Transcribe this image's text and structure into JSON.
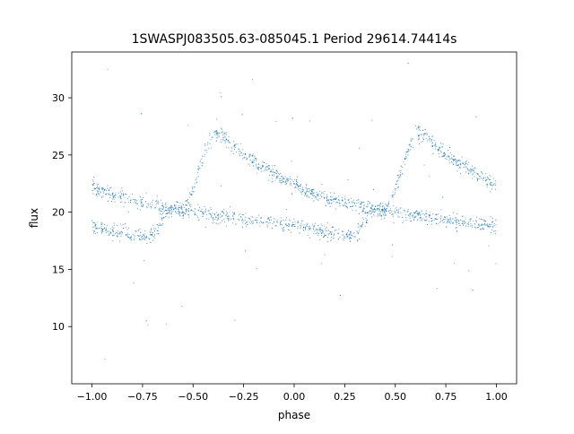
{
  "chart_data": {
    "type": "scatter",
    "title": "1SWASPJ083505.63-085045.1 Period 29614.74414s",
    "xlabel": "phase",
    "ylabel": "flux",
    "xlim": [
      -1.1,
      1.1
    ],
    "ylim": [
      5.0,
      34.0
    ],
    "xticks": [
      -1.0,
      -0.75,
      -0.5,
      -0.25,
      0.0,
      0.25,
      0.5,
      0.75,
      1.0
    ],
    "xtick_labels": [
      "−1.00",
      "−0.75",
      "−0.50",
      "−0.25",
      "0.00",
      "0.25",
      "0.50",
      "0.75",
      "1.00"
    ],
    "yticks": [
      10,
      15,
      20,
      25,
      30
    ],
    "ytick_labels": [
      "10",
      "15",
      "20",
      "25",
      "30"
    ],
    "grid": false,
    "legend": "none",
    "marker_color": "#1f77b4",
    "series": [
      {
        "description_points": "phase-folded light curve, shown twice (phase -1 to 1)",
        "upper_branch_x": [
          -1.0,
          -0.9,
          -0.8,
          -0.7,
          -0.6,
          -0.55,
          -0.5,
          -0.45,
          -0.4,
          -0.35,
          -0.3,
          -0.2,
          -0.1,
          0.0,
          0.1,
          0.2,
          0.3,
          0.4,
          0.45,
          0.5,
          0.55,
          0.6,
          0.65,
          0.7,
          0.8,
          0.9,
          1.0
        ],
        "upper_branch_y": [
          22.3,
          21.5,
          21.0,
          20.6,
          20.2,
          20.0,
          22.0,
          24.8,
          26.8,
          26.7,
          25.8,
          24.5,
          23.3,
          22.3,
          21.5,
          21.0,
          20.6,
          20.2,
          20.0,
          22.0,
          24.8,
          26.8,
          26.7,
          25.8,
          24.5,
          23.3,
          22.3
        ]
      },
      {
        "lower_branch_x": [
          -1.0,
          -0.9,
          -0.8,
          -0.7,
          -0.6,
          -0.5,
          -0.4,
          -0.3,
          -0.2,
          -0.1,
          0.0,
          0.1,
          0.2,
          0.3,
          0.4,
          0.5,
          0.6,
          0.7,
          0.8,
          0.9,
          1.0
        ],
        "lower_branch_y": [
          18.7,
          18.4,
          18.1,
          17.9,
          20.5,
          20.0,
          19.7,
          19.5,
          19.3,
          19.1,
          18.9,
          18.4,
          18.1,
          17.9,
          20.5,
          20.0,
          19.7,
          19.5,
          19.3,
          19.1,
          18.8
        ]
      }
    ]
  }
}
